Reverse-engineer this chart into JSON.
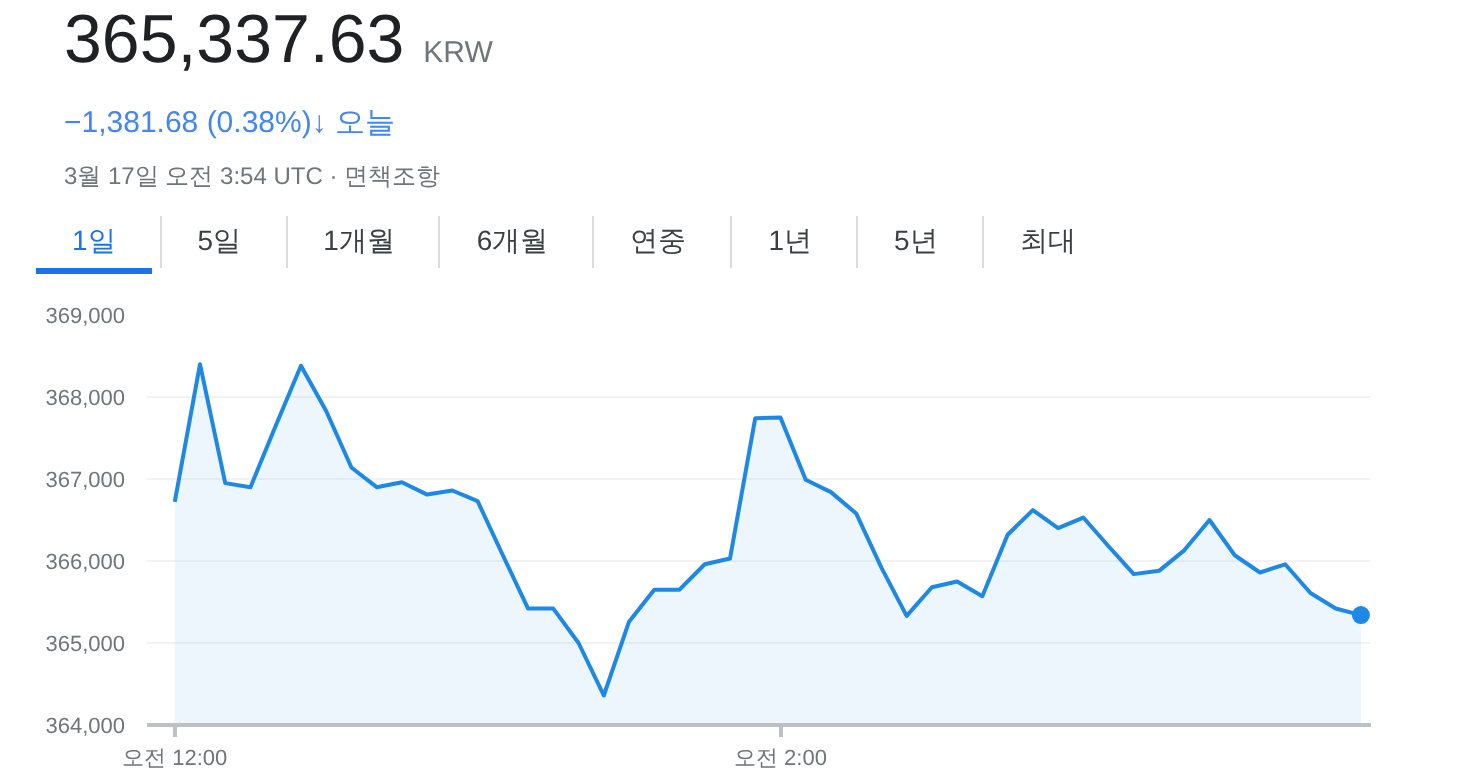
{
  "chart_data": {
    "type": "area",
    "title": "365,337.63",
    "subtitle": "−1,381.68 (0.38%)↓ 오늘",
    "annotations": [
      "KRW",
      "3월 17일 오전 3:54 UTC · 면책조항",
      "1일",
      "5일",
      "1개월",
      "6개월",
      "연중",
      "1년",
      "5년",
      "최대"
    ],
    "categories": [
      "오전 12:00",
      null,
      null,
      null,
      null,
      null,
      null,
      null,
      null,
      null,
      null,
      null,
      null,
      null,
      null,
      null,
      null,
      null,
      null,
      null,
      null,
      null,
      null,
      null,
      "오전 2:00",
      null,
      null,
      null,
      null,
      null,
      null,
      null,
      null,
      null,
      null,
      null,
      null,
      null,
      null,
      null,
      null,
      null,
      null,
      null,
      null,
      null,
      null,
      null
    ],
    "series": [
      {
        "color": "#1e88e5",
        "values": [
          366720,
          368400,
          366950,
          366900,
          367650,
          368380,
          367830,
          367140,
          366900,
          366960,
          366810,
          366860,
          366730,
          366070,
          365420,
          365420,
          365000,
          364360,
          365260,
          365650,
          365650,
          365960,
          366030,
          367740,
          367750,
          366990,
          366840,
          366580,
          365920,
          365330,
          365680,
          365750,
          365570,
          366320,
          366620,
          366400,
          366530,
          366180,
          365840,
          365880,
          366130,
          366500,
          366070,
          365860,
          365960,
          365610,
          365420,
          365340
        ]
      }
    ],
    "ylim": [
      364000,
      369000
    ],
    "yticks": [
      {
        "value": 364000,
        "label": "364,000"
      },
      {
        "value": 365000,
        "label": "365,000"
      },
      {
        "value": 366000,
        "label": "366,000"
      },
      {
        "value": 367000,
        "label": "367,000"
      },
      {
        "value": 368000,
        "label": "368,000"
      },
      {
        "value": 369000,
        "label": "369,000"
      }
    ],
    "grid": "y"
  }
}
